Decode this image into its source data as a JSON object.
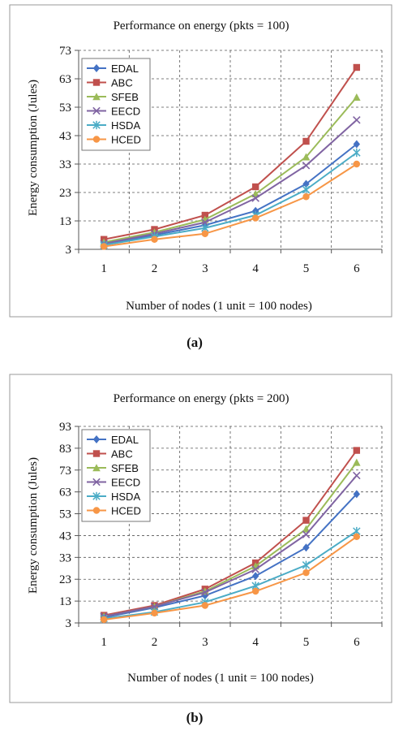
{
  "chart_data": [
    {
      "type": "line",
      "panel_label": "(a)",
      "title": "Performance on energy (pkts = 100)",
      "xlabel": "Number of nodes (1 unit = 100 nodes)",
      "ylabel": "Energy consumption (Jules)",
      "x": [
        1,
        2,
        3,
        4,
        5,
        6
      ],
      "xticks": [
        "1",
        "2",
        "3",
        "4",
        "5",
        "6"
      ],
      "ylim": [
        3,
        73
      ],
      "yticks": [
        3,
        13,
        23,
        33,
        43,
        53,
        63,
        73
      ],
      "grid": true,
      "legend_position": "top-left",
      "series": [
        {
          "name": "EDAL",
          "color": "#4472c4",
          "marker": "diamond",
          "values": [
            5,
            8,
            11.5,
            16.5,
            26,
            40
          ]
        },
        {
          "name": "ABC",
          "color": "#c0504d",
          "marker": "square",
          "values": [
            6.5,
            10,
            15,
            25,
            41,
            67
          ]
        },
        {
          "name": "SFEB",
          "color": "#9bbb59",
          "marker": "triangle",
          "values": [
            5.5,
            9,
            13.5,
            22.5,
            35.5,
            56.5
          ]
        },
        {
          "name": "EECD",
          "color": "#8064a2",
          "marker": "x",
          "values": [
            5,
            8.5,
            12.5,
            21,
            32.5,
            48.5
          ]
        },
        {
          "name": "HSDA",
          "color": "#4bacc6",
          "marker": "star",
          "values": [
            4.5,
            7.5,
            10.5,
            15,
            24,
            37
          ]
        },
        {
          "name": "HCED",
          "color": "#f79646",
          "marker": "circle",
          "values": [
            4,
            6.5,
            8.5,
            14,
            21.5,
            33
          ]
        }
      ]
    },
    {
      "type": "line",
      "panel_label": "(b)",
      "title": "Performance on energy (pkts = 200)",
      "xlabel": "Number of nodes (1 unit = 100 nodes)",
      "ylabel": "Energy consumption (Jules)",
      "x": [
        1,
        2,
        3,
        4,
        5,
        6
      ],
      "xticks": [
        "1",
        "2",
        "3",
        "4",
        "5",
        "6"
      ],
      "ylim": [
        3,
        93
      ],
      "yticks": [
        3,
        13,
        23,
        33,
        43,
        53,
        63,
        73,
        83,
        93
      ],
      "grid": true,
      "legend_position": "top-left",
      "series": [
        {
          "name": "EDAL",
          "color": "#4472c4",
          "marker": "diamond",
          "values": [
            5.5,
            10,
            15.5,
            24.5,
            37.5,
            62
          ]
        },
        {
          "name": "ABC",
          "color": "#c0504d",
          "marker": "square",
          "values": [
            6.5,
            11,
            18.5,
            30.5,
            50,
            82
          ]
        },
        {
          "name": "SFEB",
          "color": "#9bbb59",
          "marker": "triangle",
          "values": [
            6,
            10.5,
            17.5,
            29,
            46,
            76.5
          ]
        },
        {
          "name": "EECD",
          "color": "#8064a2",
          "marker": "x",
          "values": [
            6,
            10.5,
            17,
            27.5,
            43.5,
            70.5
          ]
        },
        {
          "name": "HSDA",
          "color": "#4bacc6",
          "marker": "star",
          "values": [
            5,
            8,
            12.5,
            20,
            29.5,
            45
          ]
        },
        {
          "name": "HCED",
          "color": "#f79646",
          "marker": "circle",
          "values": [
            4.5,
            7.5,
            11,
            17.5,
            26,
            42.5
          ]
        }
      ]
    }
  ]
}
